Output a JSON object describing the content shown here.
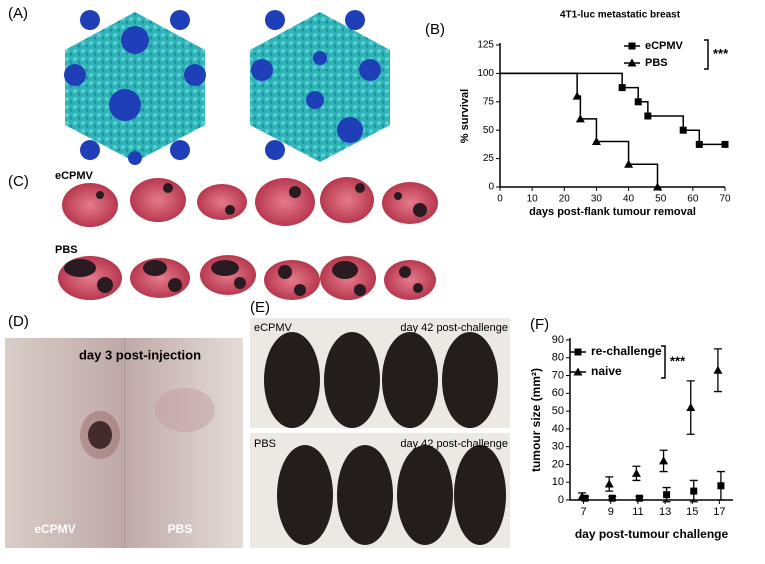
{
  "panel_labels": [
    "(A)",
    "(B)",
    "(C)",
    "(D)",
    "(E)",
    "(F)"
  ],
  "panel_c": {
    "labels": [
      "eCPMV",
      "PBS"
    ]
  },
  "panel_d": {
    "caption": "day 3 post-injection",
    "left": "eCPMV",
    "right": "PBS"
  },
  "panel_e": {
    "top_left": "eCPMV",
    "top_right": "day 42 post-challenge",
    "bottom_left": "PBS",
    "bottom_right": "day 42 post-challenge"
  },
  "chart_data": [
    {
      "type": "line",
      "step": true,
      "title": "4T1-luc metastatic breast",
      "x_label": "days post-flank tumour removal",
      "y_label": "% survival",
      "annotation": "***",
      "xlim": [
        0,
        70
      ],
      "xticks": [
        0,
        10,
        20,
        30,
        40,
        50,
        60,
        70
      ],
      "ylim": [
        0,
        125
      ],
      "yticks": [
        0,
        25,
        50,
        75,
        100,
        125
      ],
      "series": [
        {
          "name": "eCPMV",
          "color": "#000000",
          "marker": "square",
          "x": [
            0,
            38,
            43,
            46,
            57,
            62,
            70
          ],
          "values": [
            100,
            87.5,
            75,
            62.5,
            50,
            37.5,
            37.5
          ]
        },
        {
          "name": "PBS",
          "color": "#000000",
          "marker": "triangle",
          "x": [
            0,
            24,
            25,
            30,
            40,
            49
          ],
          "values": [
            100,
            80,
            60,
            40,
            20,
            0
          ]
        }
      ]
    },
    {
      "type": "errorbar",
      "x_label": "day post-tumour challenge",
      "y_label": "tumour size (mm²)",
      "annotation": "***",
      "xlim": [
        6,
        18
      ],
      "xticks": [
        7,
        9,
        11,
        13,
        15,
        17
      ],
      "ylim": [
        0,
        90
      ],
      "yticks": [
        0,
        10,
        20,
        30,
        40,
        50,
        60,
        70,
        80,
        90
      ],
      "series": [
        {
          "name": "re-challenge",
          "color": "#000000",
          "marker": "square",
          "x": [
            7,
            9,
            11,
            13,
            15,
            17
          ],
          "values": [
            1,
            1,
            1,
            3,
            5,
            8
          ],
          "errors": [
            1,
            1,
            1,
            4,
            6,
            8
          ]
        },
        {
          "name": "naive",
          "color": "#000000",
          "marker": "triangle",
          "x": [
            7,
            9,
            11,
            13,
            15,
            17
          ],
          "values": [
            2,
            9,
            15,
            22,
            52,
            73
          ],
          "errors": [
            2,
            4,
            4,
            6,
            15,
            12
          ]
        }
      ]
    }
  ]
}
